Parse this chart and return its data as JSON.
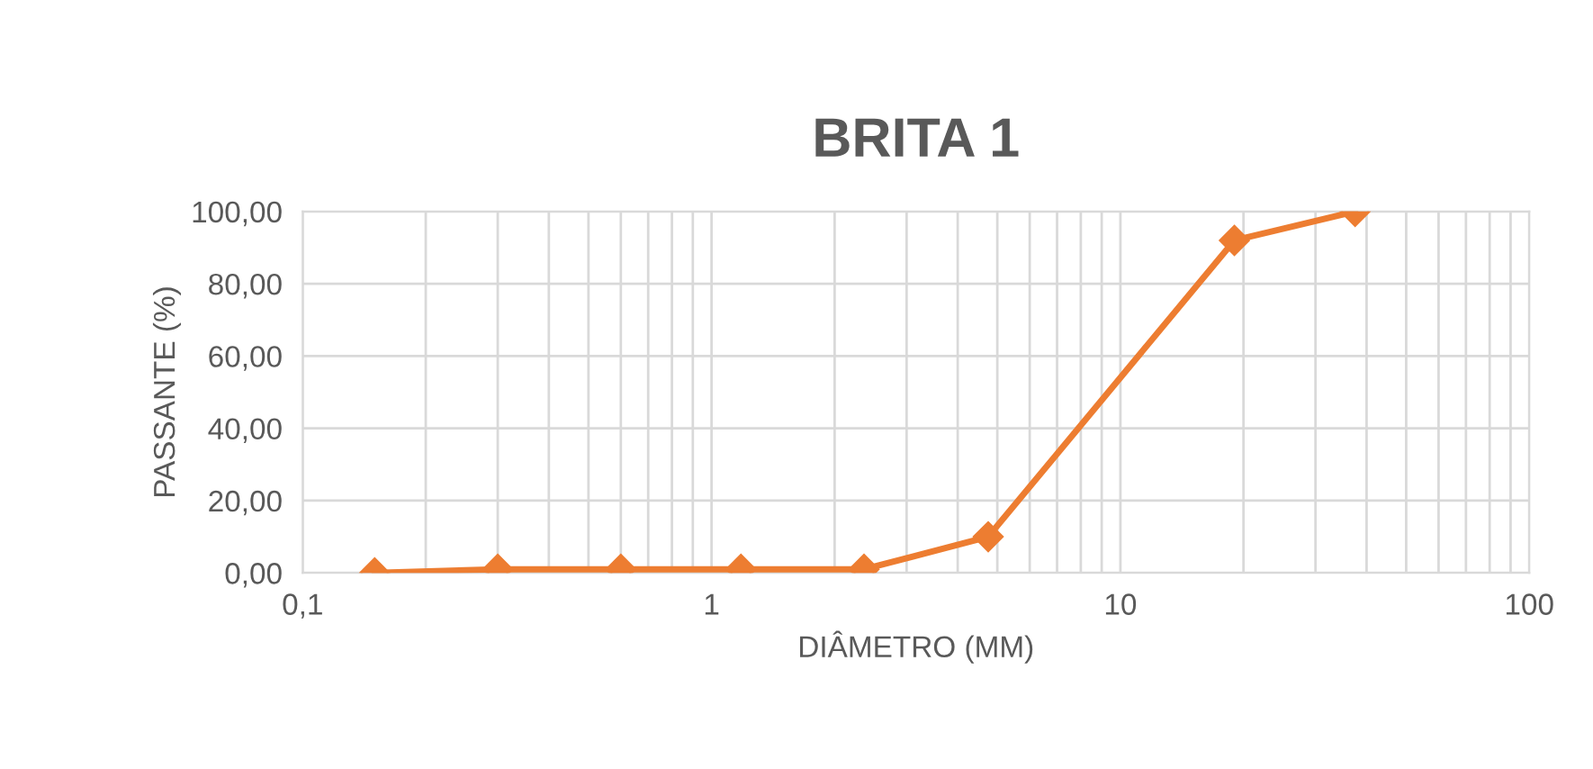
{
  "chart_data": {
    "type": "line",
    "title": "BRITA 1",
    "xlabel": "DIÂMETRO (MM)",
    "ylabel": "PASSANTE (%)",
    "x": [
      0.15,
      0.3,
      0.6,
      1.18,
      2.36,
      4.75,
      19,
      37.5
    ],
    "series": [
      {
        "color": "#ed7d31",
        "values": [
          0,
          1,
          1,
          1,
          1,
          10,
          92,
          100
        ]
      }
    ],
    "log": "x",
    "marker": "diamond",
    "line_style": "solid",
    "grid": true,
    "legend": false,
    "xlim": [
      0.1,
      100
    ],
    "xticks": [
      {
        "value": 0.1,
        "label": "0,1"
      },
      1,
      10,
      100
    ],
    "ylim": [
      0,
      100
    ],
    "yticks": [
      {
        "value": 0,
        "label": "0,00"
      },
      {
        "value": 20,
        "label": "20,00"
      },
      {
        "value": 40,
        "label": "40,00"
      },
      {
        "value": 60,
        "label": "60,00"
      },
      {
        "value": 80,
        "label": "80,00"
      },
      {
        "value": 100,
        "label": "100,00"
      }
    ]
  }
}
